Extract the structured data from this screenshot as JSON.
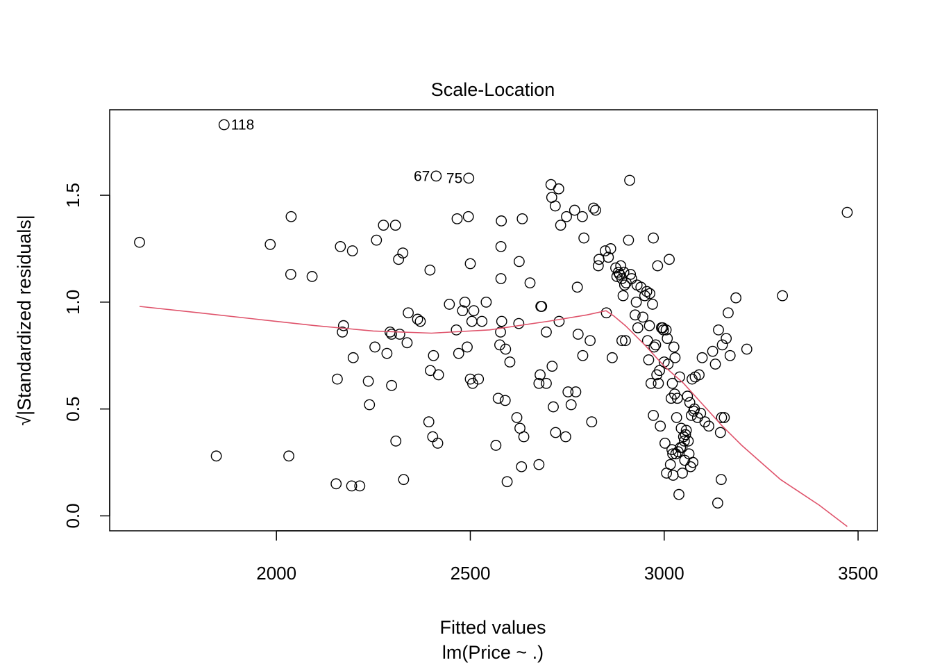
{
  "chart_data": {
    "type": "scatter",
    "title": "Scale-Location",
    "xlabel": "Fitted values",
    "xlabel2": "lm(Price ~ .)",
    "ylabel": "√|Standardized residuals|",
    "xlim": [
      1570,
      3550
    ],
    "ylim": [
      -0.07,
      1.9
    ],
    "xticks": [
      2000,
      2500,
      3000,
      3500
    ],
    "yticks": [
      0.0,
      0.5,
      1.0,
      1.5
    ],
    "xtick_labels": [
      "2000",
      "2500",
      "3000",
      "3500"
    ],
    "ytick_labels": [
      "0.0",
      "0.5",
      "1.0",
      "1.5"
    ],
    "grid": false,
    "point_color": "#000000",
    "smooth_color": "#DF536B",
    "annotations": [
      {
        "text": "118",
        "x": 1865,
        "y": 1.83,
        "side": "right"
      },
      {
        "text": "67",
        "x": 2412,
        "y": 1.59,
        "side": "left"
      },
      {
        "text": "75",
        "x": 2496,
        "y": 1.58,
        "side": "left"
      }
    ],
    "points": [
      [
        1647,
        1.28
      ],
      [
        1845,
        0.28
      ],
      [
        1865,
        1.83
      ],
      [
        1984,
        1.27
      ],
      [
        2032,
        0.28
      ],
      [
        2037,
        1.13
      ],
      [
        2038,
        1.4
      ],
      [
        2092,
        1.12
      ],
      [
        2154,
        0.15
      ],
      [
        2157,
        0.64
      ],
      [
        2165,
        1.26
      ],
      [
        2170,
        0.86
      ],
      [
        2173,
        0.89
      ],
      [
        2194,
        0.14
      ],
      [
        2196,
        1.24
      ],
      [
        2198,
        0.74
      ],
      [
        2215,
        0.14
      ],
      [
        2237,
        0.63
      ],
      [
        2240,
        0.52
      ],
      [
        2254,
        0.79
      ],
      [
        2258,
        1.29
      ],
      [
        2276,
        1.36
      ],
      [
        2285,
        0.76
      ],
      [
        2293,
        0.86
      ],
      [
        2297,
        0.85
      ],
      [
        2297,
        0.61
      ],
      [
        2307,
        1.36
      ],
      [
        2308,
        0.35
      ],
      [
        2315,
        1.2
      ],
      [
        2318,
        0.85
      ],
      [
        2326,
        1.23
      ],
      [
        2328,
        0.17
      ],
      [
        2337,
        0.81
      ],
      [
        2340,
        0.95
      ],
      [
        2364,
        0.92
      ],
      [
        2371,
        0.91
      ],
      [
        2393,
        0.44
      ],
      [
        2396,
        1.15
      ],
      [
        2397,
        0.68
      ],
      [
        2403,
        0.37
      ],
      [
        2405,
        0.75
      ],
      [
        2412,
        1.59
      ],
      [
        2416,
        0.34
      ],
      [
        2418,
        0.66
      ],
      [
        2446,
        0.99
      ],
      [
        2464,
        0.87
      ],
      [
        2466,
        1.39
      ],
      [
        2470,
        0.76
      ],
      [
        2480,
        0.96
      ],
      [
        2486,
        1.0
      ],
      [
        2492,
        0.79
      ],
      [
        2495,
        1.4
      ],
      [
        2496,
        1.58
      ],
      [
        2500,
        1.18
      ],
      [
        2500,
        0.64
      ],
      [
        2504,
        0.91
      ],
      [
        2506,
        0.62
      ],
      [
        2509,
        0.96
      ],
      [
        2521,
        0.64
      ],
      [
        2530,
        0.91
      ],
      [
        2541,
        1.0
      ],
      [
        2566,
        0.33
      ],
      [
        2572,
        0.55
      ],
      [
        2576,
        0.8
      ],
      [
        2578,
        0.86
      ],
      [
        2579,
        1.11
      ],
      [
        2579,
        1.26
      ],
      [
        2580,
        1.38
      ],
      [
        2581,
        0.91
      ],
      [
        2590,
        0.54
      ],
      [
        2591,
        0.78
      ],
      [
        2595,
        0.16
      ],
      [
        2602,
        0.72
      ],
      [
        2620,
        0.46
      ],
      [
        2625,
        0.9
      ],
      [
        2626,
        1.19
      ],
      [
        2628,
        0.41
      ],
      [
        2632,
        0.23
      ],
      [
        2634,
        1.39
      ],
      [
        2638,
        0.37
      ],
      [
        2654,
        1.09
      ],
      [
        2677,
        0.24
      ],
      [
        2677,
        0.62
      ],
      [
        2680,
        0.66
      ],
      [
        2682,
        0.98
      ],
      [
        2684,
        0.98
      ],
      [
        2696,
        0.86
      ],
      [
        2696,
        0.62
      ],
      [
        2708,
        1.55
      ],
      [
        2710,
        1.49
      ],
      [
        2711,
        0.7
      ],
      [
        2714,
        0.51
      ],
      [
        2719,
        1.45
      ],
      [
        2720,
        0.39
      ],
      [
        2728,
        1.53
      ],
      [
        2729,
        0.91
      ],
      [
        2733,
        1.36
      ],
      [
        2746,
        0.37
      ],
      [
        2748,
        1.4
      ],
      [
        2752,
        0.58
      ],
      [
        2760,
        0.52
      ],
      [
        2769,
        1.43
      ],
      [
        2772,
        0.58
      ],
      [
        2776,
        1.07
      ],
      [
        2778,
        0.85
      ],
      [
        2789,
        1.4
      ],
      [
        2790,
        0.75
      ],
      [
        2793,
        1.3
      ],
      [
        2809,
        0.82
      ],
      [
        2813,
        0.44
      ],
      [
        2818,
        1.44
      ],
      [
        2823,
        1.43
      ],
      [
        2830,
        1.17
      ],
      [
        2832,
        1.2
      ],
      [
        2848,
        1.24
      ],
      [
        2851,
        0.95
      ],
      [
        2856,
        1.21
      ],
      [
        2862,
        1.25
      ],
      [
        2866,
        0.74
      ],
      [
        2875,
        1.16
      ],
      [
        2878,
        1.12
      ],
      [
        2882,
        1.14
      ],
      [
        2885,
        1.13
      ],
      [
        2888,
        1.17
      ],
      [
        2891,
        1.11
      ],
      [
        2891,
        0.82
      ],
      [
        2894,
        1.03
      ],
      [
        2896,
        1.14
      ],
      [
        2898,
        1.08
      ],
      [
        2900,
        0.82
      ],
      [
        2902,
        1.09
      ],
      [
        2908,
        1.29
      ],
      [
        2911,
        1.57
      ],
      [
        2913,
        1.13
      ],
      [
        2916,
        1.11
      ],
      [
        2925,
        0.94
      ],
      [
        2928,
        1.0
      ],
      [
        2930,
        1.08
      ],
      [
        2932,
        0.88
      ],
      [
        2940,
        1.07
      ],
      [
        2945,
        0.93
      ],
      [
        2950,
        1.03
      ],
      [
        2955,
        1.05
      ],
      [
        2957,
        0.82
      ],
      [
        2960,
        0.73
      ],
      [
        2962,
        0.89
      ],
      [
        2963,
        1.04
      ],
      [
        2966,
        0.62
      ],
      [
        2970,
        0.99
      ],
      [
        2972,
        1.3
      ],
      [
        2972,
        0.47
      ],
      [
        2974,
        0.79
      ],
      [
        2978,
        0.8
      ],
      [
        2981,
        0.66
      ],
      [
        2983,
        1.17
      ],
      [
        2985,
        0.62
      ],
      [
        2988,
        0.68
      ],
      [
        2990,
        0.42
      ],
      [
        2993,
        0.88
      ],
      [
        2996,
        0.88
      ],
      [
        2998,
        0.87
      ],
      [
        3000,
        0.72
      ],
      [
        3002,
        0.34
      ],
      [
        3005,
        0.87
      ],
      [
        3006,
        0.2
      ],
      [
        3008,
        0.83
      ],
      [
        3010,
        0.71
      ],
      [
        3013,
        1.2
      ],
      [
        3016,
        0.24
      ],
      [
        3018,
        0.55
      ],
      [
        3020,
        0.31
      ],
      [
        3021,
        0.62
      ],
      [
        3022,
        0.29
      ],
      [
        3023,
        0.19
      ],
      [
        3025,
        0.79
      ],
      [
        3027,
        0.57
      ],
      [
        3028,
        0.74
      ],
      [
        3030,
        0.29
      ],
      [
        3032,
        0.46
      ],
      [
        3034,
        0.55
      ],
      [
        3036,
        0.3
      ],
      [
        3038,
        0.1
      ],
      [
        3040,
        0.65
      ],
      [
        3042,
        0.32
      ],
      [
        3044,
        0.41
      ],
      [
        3046,
        0.32
      ],
      [
        3047,
        0.2
      ],
      [
        3050,
        0.37
      ],
      [
        3052,
        0.35
      ],
      [
        3053,
        0.26
      ],
      [
        3055,
        0.38
      ],
      [
        3057,
        0.4
      ],
      [
        3060,
        0.56
      ],
      [
        3062,
        0.35
      ],
      [
        3064,
        0.29
      ],
      [
        3066,
        0.53
      ],
      [
        3068,
        0.23
      ],
      [
        3070,
        0.47
      ],
      [
        3072,
        0.64
      ],
      [
        3074,
        0.25
      ],
      [
        3076,
        0.49
      ],
      [
        3078,
        0.5
      ],
      [
        3080,
        0.65
      ],
      [
        3086,
        0.46
      ],
      [
        3090,
        0.66
      ],
      [
        3094,
        0.48
      ],
      [
        3098,
        0.74
      ],
      [
        3105,
        0.44
      ],
      [
        3115,
        0.42
      ],
      [
        3125,
        0.77
      ],
      [
        3132,
        0.71
      ],
      [
        3138,
        0.06
      ],
      [
        3140,
        0.87
      ],
      [
        3145,
        0.39
      ],
      [
        3147,
        0.17
      ],
      [
        3148,
        0.46
      ],
      [
        3150,
        0.8
      ],
      [
        3155,
        0.46
      ],
      [
        3160,
        0.83
      ],
      [
        3165,
        0.95
      ],
      [
        3170,
        0.75
      ],
      [
        3185,
        1.02
      ],
      [
        3213,
        0.78
      ],
      [
        3305,
        1.03
      ],
      [
        3472,
        1.42
      ]
    ],
    "smooth_line": [
      [
        1647,
        0.98
      ],
      [
        1800,
        0.95
      ],
      [
        1950,
        0.92
      ],
      [
        2100,
        0.89
      ],
      [
        2250,
        0.865
      ],
      [
        2400,
        0.855
      ],
      [
        2550,
        0.87
      ],
      [
        2700,
        0.91
      ],
      [
        2800,
        0.94
      ],
      [
        2850,
        0.96
      ],
      [
        2870,
        0.935
      ],
      [
        2900,
        0.89
      ],
      [
        2950,
        0.8
      ],
      [
        3000,
        0.7
      ],
      [
        3050,
        0.62
      ],
      [
        3100,
        0.52
      ],
      [
        3150,
        0.42
      ],
      [
        3200,
        0.33
      ],
      [
        3250,
        0.25
      ],
      [
        3300,
        0.17
      ],
      [
        3400,
        0.05
      ],
      [
        3472,
        -0.05
      ]
    ]
  }
}
